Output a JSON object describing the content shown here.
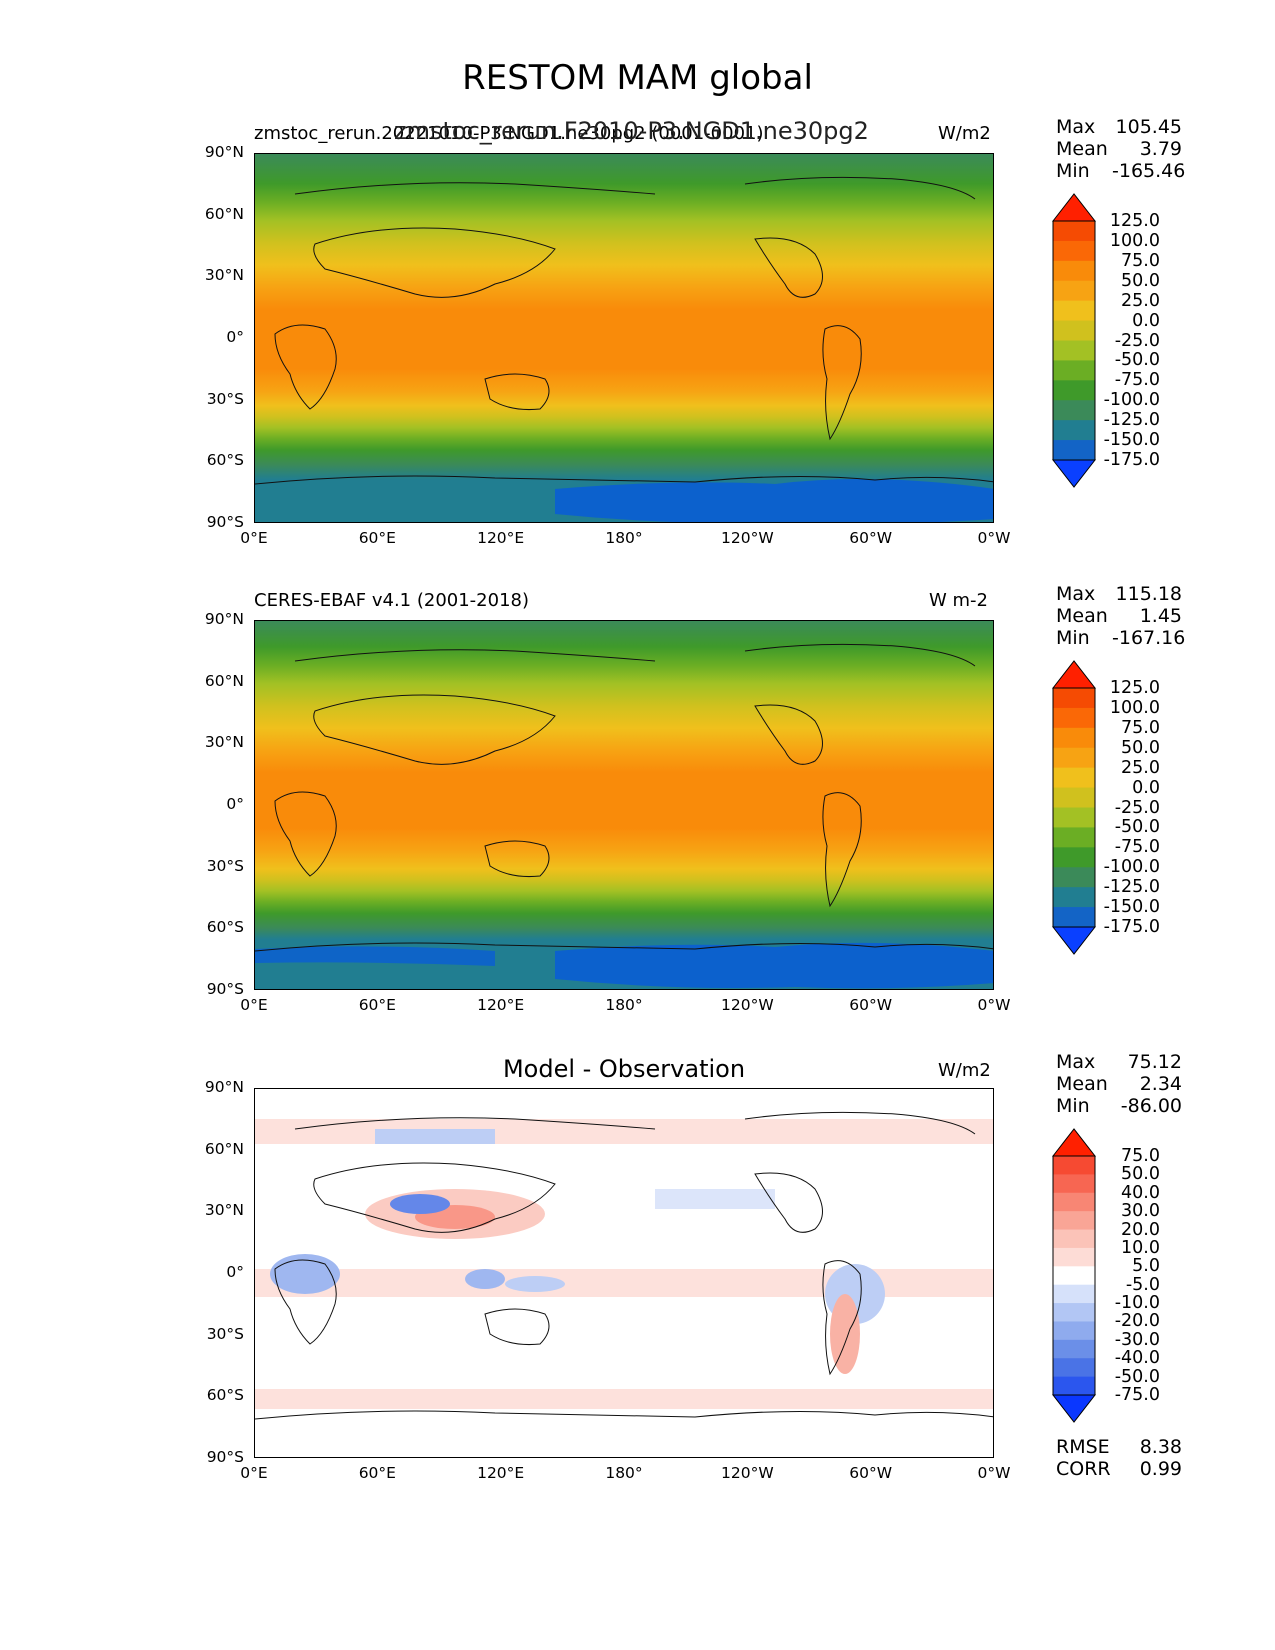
{
  "figure": {
    "title": "RESTOM MAM global"
  },
  "axes": {
    "lat_ticks": [
      "90°N",
      "60°N",
      "30°N",
      "0°",
      "30°S",
      "60°S",
      "90°S"
    ],
    "lon_ticks": [
      "0°E",
      "60°E",
      "120°E",
      "180°",
      "120°W",
      "60°W",
      "0°W"
    ]
  },
  "panels": [
    {
      "left_title": "zmstoc_rerun.20221010-P3.NGD1.ne30pg2 (0001-0001)",
      "center_title": "zmstoc_rerun.F2010-P3.NGD1.ne30pg2",
      "right_title": "W/m2",
      "stats": {
        "max": "105.45",
        "mean": "3.79",
        "min": "-165.46"
      },
      "colorbar_labels": [
        "125.0",
        "100.0",
        "75.0",
        "50.0",
        "25.0",
        "0.0",
        "-25.0",
        "-50.0",
        "-75.0",
        "-100.0",
        "-125.0",
        "-150.0",
        "-175.0"
      ]
    },
    {
      "left_title": "CERES-EBAF v4.1 (2001-2018)",
      "center_title": "",
      "right_title": "W m-2",
      "stats": {
        "max": "115.18",
        "mean": "1.45",
        "min": "-167.16"
      },
      "colorbar_labels": [
        "125.0",
        "100.0",
        "75.0",
        "50.0",
        "25.0",
        "0.0",
        "-25.0",
        "-50.0",
        "-75.0",
        "-100.0",
        "-125.0",
        "-150.0",
        "-175.0"
      ]
    },
    {
      "left_title": "",
      "center_title": "Model - Observation",
      "right_title": "W/m2",
      "stats": {
        "max": "75.12",
        "mean": "2.34",
        "min": "-86.00"
      },
      "colorbar_labels": [
        "75.0",
        "50.0",
        "40.0",
        "30.0",
        "20.0",
        "10.0",
        "5.0",
        "-5.0",
        "-10.0",
        "-20.0",
        "-30.0",
        "-40.0",
        "-50.0",
        "-75.0"
      ],
      "rmse": "8.38",
      "corr": "0.99"
    }
  ],
  "stat_labels": {
    "max": "Max",
    "mean": "Mean",
    "min": "Min",
    "rmse": "RMSE",
    "corr": "CORR"
  },
  "chart_data": [
    {
      "type": "heatmap",
      "title": "zmstoc_rerun.F2010-P3.NGD1.ne30pg2",
      "units": "W/m2",
      "variable": "RESTOM",
      "season": "MAM",
      "levels": [
        -175,
        -150,
        -125,
        -100,
        -75,
        -50,
        -25,
        0,
        25,
        50,
        75,
        100,
        125
      ],
      "colors": [
        "#0a40ff",
        "#1364c6",
        "#217e91",
        "#3b8a59",
        "#3f9a2a",
        "#6bae24",
        "#a3c124",
        "#d0c11e",
        "#f0c01c",
        "#f7a313",
        "#f98b0a",
        "#fa6806",
        "#f54b03",
        "#ff2000"
      ],
      "lat_range": [
        -90,
        90
      ],
      "lon_range": [
        0,
        360
      ],
      "stats": {
        "max": 105.45,
        "mean": 3.79,
        "min": -165.46
      }
    },
    {
      "type": "heatmap",
      "title": "CERES-EBAF v4.1 (2001-2018)",
      "units": "W m-2",
      "levels": [
        -175,
        -150,
        -125,
        -100,
        -75,
        -50,
        -25,
        0,
        25,
        50,
        75,
        100,
        125
      ],
      "colors": [
        "#0a40ff",
        "#1364c6",
        "#217e91",
        "#3b8a59",
        "#3f9a2a",
        "#6bae24",
        "#a3c124",
        "#d0c11e",
        "#f0c01c",
        "#f7a313",
        "#f98b0a",
        "#fa6806",
        "#f54b03",
        "#ff2000"
      ],
      "lat_range": [
        -90,
        90
      ],
      "lon_range": [
        0,
        360
      ],
      "stats": {
        "max": 115.18,
        "mean": 1.45,
        "min": -167.16
      }
    },
    {
      "type": "heatmap",
      "title": "Model - Observation",
      "units": "W/m2",
      "levels": [
        -75,
        -50,
        -40,
        -30,
        -20,
        -10,
        -5,
        5,
        10,
        20,
        30,
        40,
        50,
        75
      ],
      "colors": [
        "#0a37ff",
        "#2b56ee",
        "#4a73e6",
        "#6b8fe8",
        "#8fabee",
        "#b2c6f4",
        "#d6e1fa",
        "#ffffff",
        "#fddcd6",
        "#fbc3b8",
        "#f9a596",
        "#f88674",
        "#f76652",
        "#f64a32",
        "#ff2000"
      ],
      "lat_range": [
        -90,
        90
      ],
      "lon_range": [
        0,
        360
      ],
      "stats": {
        "max": 75.12,
        "mean": 2.34,
        "min": -86.0,
        "rmse": 8.38,
        "corr": 0.99
      }
    }
  ]
}
